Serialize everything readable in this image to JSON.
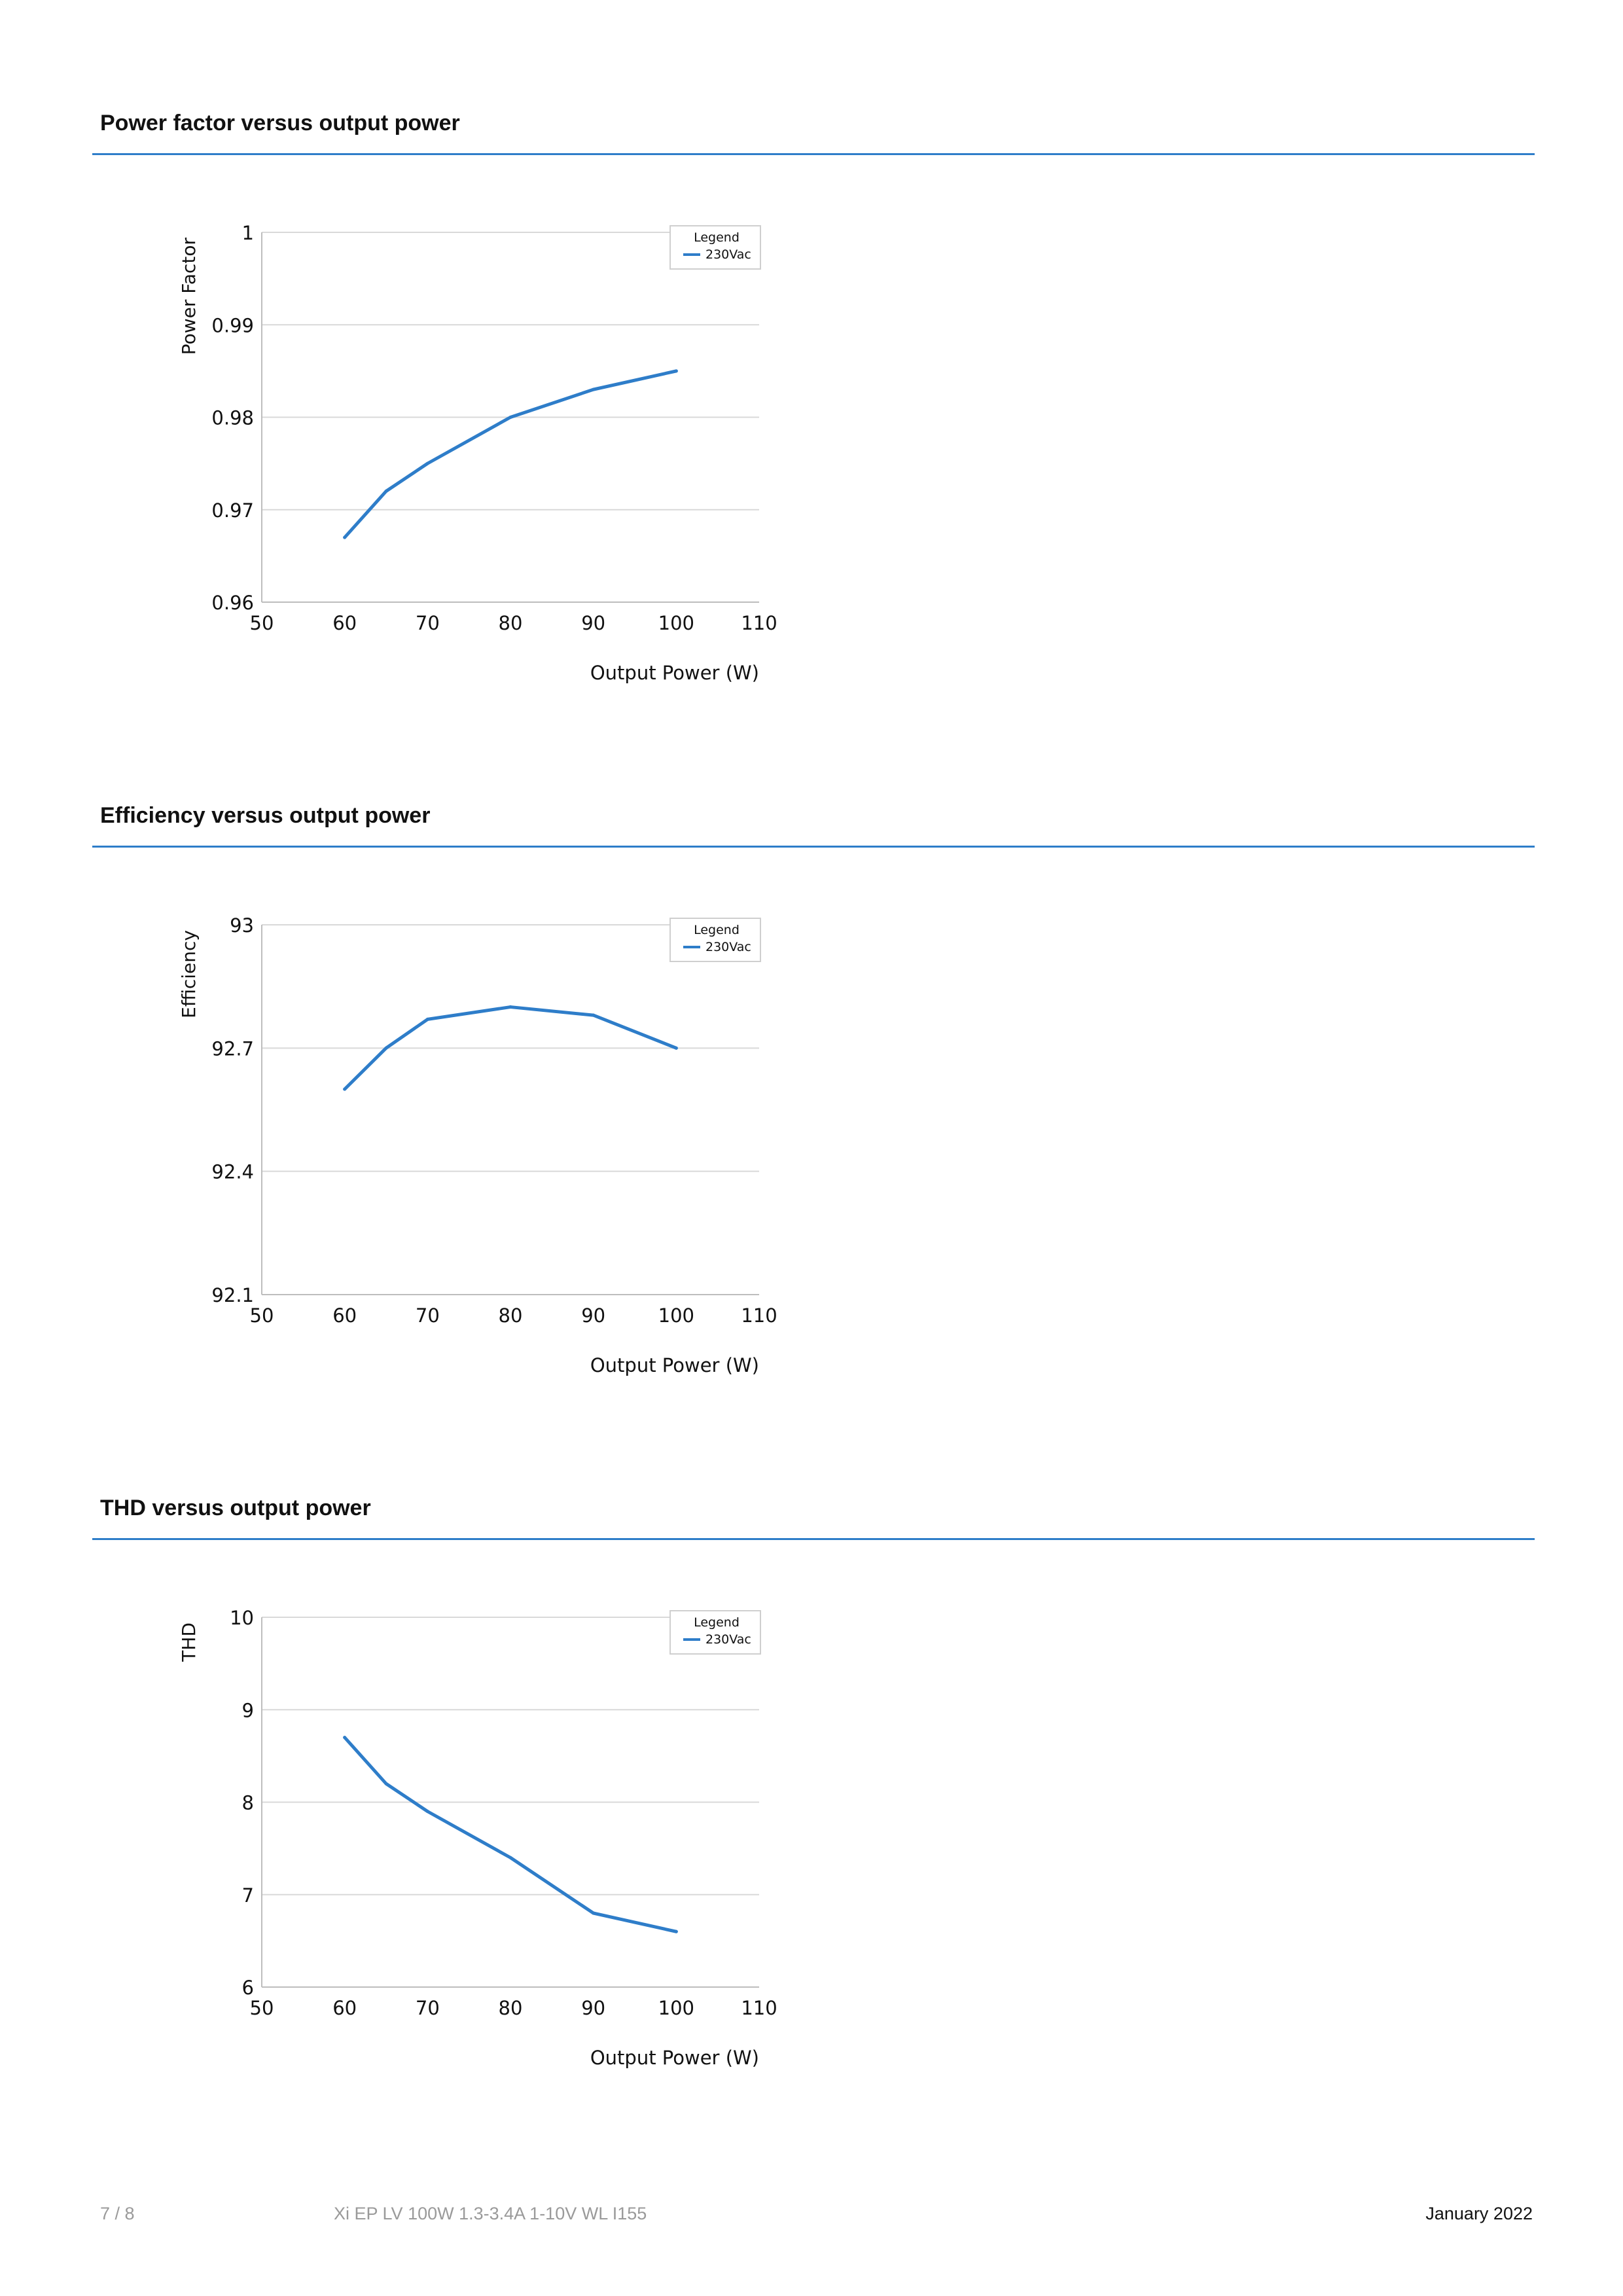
{
  "sections": [
    {
      "title": "Power factor versus output power"
    },
    {
      "title": "Efficiency versus output power"
    },
    {
      "title": "THD versus output power"
    }
  ],
  "colors": {
    "series": "#2e7dc9",
    "rule": "#2e7dc9",
    "grid": "#d9d9d9",
    "footer_muted": "#9a9a9a"
  },
  "chart_data": [
    {
      "type": "line",
      "title": "",
      "xlabel": "Output Power (W)",
      "ylabel": "Power Factor",
      "xlim": [
        50,
        110
      ],
      "ylim": [
        0.96,
        1
      ],
      "xticks": [
        50,
        60,
        70,
        80,
        90,
        100,
        110
      ],
      "yticks": [
        "0.96",
        "0.97",
        "0.98",
        "0.99",
        "1"
      ],
      "grid": true,
      "legend": {
        "title": "Legend",
        "placement": "top-right"
      },
      "series": [
        {
          "name": "230Vac",
          "x": [
            60,
            65,
            70,
            80,
            90,
            100
          ],
          "y": [
            0.967,
            0.972,
            0.975,
            0.98,
            0.983,
            0.985
          ]
        }
      ]
    },
    {
      "type": "line",
      "title": "",
      "xlabel": "Output Power (W)",
      "ylabel": "Efficiency",
      "xlim": [
        50,
        110
      ],
      "ylim": [
        92.1,
        93
      ],
      "xticks": [
        50,
        60,
        70,
        80,
        90,
        100,
        110
      ],
      "yticks": [
        "92.1",
        "92.4",
        "92.7",
        "93"
      ],
      "grid": true,
      "legend": {
        "title": "Legend",
        "placement": "top-right"
      },
      "series": [
        {
          "name": "230Vac",
          "x": [
            60,
            65,
            70,
            80,
            90,
            100
          ],
          "y": [
            92.6,
            92.7,
            92.77,
            92.8,
            92.78,
            92.7
          ]
        }
      ]
    },
    {
      "type": "line",
      "title": "",
      "xlabel": "Output Power (W)",
      "ylabel": "THD",
      "xlim": [
        50,
        110
      ],
      "ylim": [
        6,
        10
      ],
      "xticks": [
        50,
        60,
        70,
        80,
        90,
        100,
        110
      ],
      "yticks": [
        "6",
        "7",
        "8",
        "9",
        "10"
      ],
      "grid": true,
      "legend": {
        "title": "Legend",
        "placement": "top-right"
      },
      "series": [
        {
          "name": "230Vac",
          "x": [
            60,
            65,
            70,
            80,
            90,
            100
          ],
          "y": [
            8.7,
            8.2,
            7.9,
            7.4,
            6.8,
            6.6
          ]
        }
      ]
    }
  ],
  "footer": {
    "page": "7 / 8",
    "product": "Xi EP LV 100W 1.3-3.4A 1-10V WL I155",
    "date": "January 2022"
  }
}
